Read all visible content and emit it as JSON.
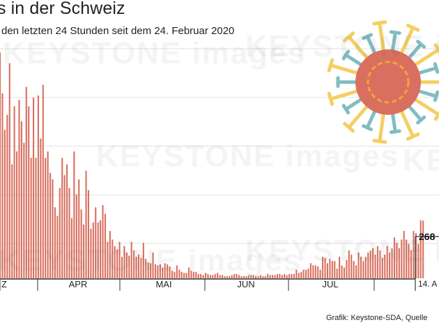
{
  "chart_data": {
    "type": "bar",
    "title": "s in der Schweiz",
    "subtitle": "den letzten 24 Stunden seit dem 24. Februar 2020",
    "month_labels": [
      "Z",
      "APR",
      "MAI",
      "JUN",
      "JUL"
    ],
    "end_date_label": "14. A",
    "annotation_value": "268",
    "source": "Grafik: Keystone-SDA, Quelle",
    "watermark": "KEYSTONE images",
    "ylim": [
      0,
      1100
    ],
    "grid": true,
    "colors": {
      "bar": "#d9705f",
      "grid": "#e2e2e2",
      "axis": "#333333",
      "virus_core": "#d9705f",
      "virus_ring": "#f2a33a",
      "virus_spike_yellow": "#f5cf62",
      "virus_spike_teal": "#80bdc3"
    },
    "icon": "coronavirus-icon",
    "values": [
      1050,
      860,
      690,
      760,
      1000,
      530,
      800,
      590,
      830,
      730,
      630,
      890,
      800,
      560,
      840,
      560,
      850,
      650,
      900,
      560,
      590,
      490,
      460,
      330,
      290,
      420,
      560,
      480,
      530,
      420,
      280,
      590,
      390,
      460,
      320,
      250,
      500,
      410,
      230,
      260,
      330,
      260,
      270,
      340,
      300,
      170,
      220,
      180,
      150,
      135,
      170,
      100,
      150,
      120,
      105,
      170,
      130,
      100,
      110,
      95,
      165,
      90,
      75,
      70,
      120,
      65,
      60,
      65,
      50,
      70,
      65,
      55,
      35,
      30,
      60,
      40,
      30,
      25,
      25,
      50,
      35,
      30,
      30,
      20,
      20,
      15,
      25,
      20,
      15,
      15,
      20,
      25,
      15,
      15,
      10,
      10,
      10,
      15,
      20,
      20,
      15,
      10,
      10,
      10,
      15,
      15,
      15,
      10,
      10,
      15,
      10,
      10,
      20,
      15,
      15,
      15,
      20,
      20,
      15,
      20,
      15,
      20,
      20,
      20,
      40,
      25,
      30,
      40,
      40,
      45,
      70,
      60,
      60,
      55,
      40,
      100,
      95,
      70,
      90,
      80,
      80,
      45,
      100,
      60,
      50,
      85,
      130,
      110,
      80,
      60,
      120,
      100,
      80,
      100,
      120,
      130,
      140,
      110,
      150,
      130,
      95,
      110,
      150,
      120,
      140,
      190,
      165,
      140,
      180,
      220,
      180,
      160,
      130,
      220,
      210,
      160,
      270,
      268
    ]
  }
}
